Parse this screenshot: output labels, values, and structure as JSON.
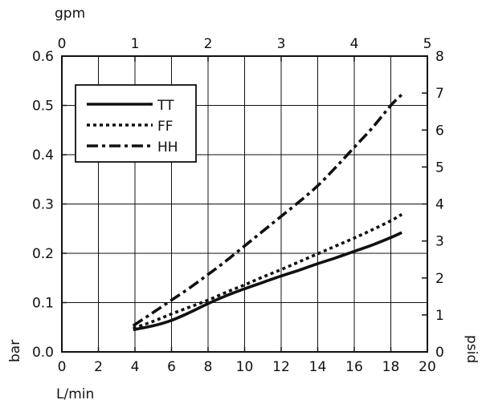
{
  "chart_data": {
    "type": "line",
    "title": "",
    "xlabel": "L/min",
    "ylabel": "bar",
    "x2label": "gpm",
    "y2label": "psid",
    "xlim": [
      0,
      20
    ],
    "ylim": [
      0,
      0.6
    ],
    "x2lim": [
      0,
      5
    ],
    "y2lim": [
      0,
      8
    ],
    "x_ticks": [
      "0",
      "2",
      "4",
      "6",
      "8",
      "10",
      "12",
      "14",
      "16",
      "18",
      "20"
    ],
    "y_ticks": [
      "0.0",
      "0.1",
      "0.2",
      "0.3",
      "0.4",
      "0.5",
      "0.6"
    ],
    "x2_ticks": [
      "0",
      "1",
      "2",
      "3",
      "4",
      "5"
    ],
    "y2_ticks": [
      "0",
      "1",
      "2",
      "3",
      "4",
      "5",
      "6",
      "7",
      "8"
    ],
    "grid": true,
    "legend_position": "top-left",
    "series": [
      {
        "name": "TT",
        "style": "solid",
        "color": "#111111",
        "x": [
          3.9,
          5,
          6,
          7,
          8,
          9,
          10,
          11,
          12,
          13,
          14,
          15,
          16,
          17,
          18,
          18.6
        ],
        "y": [
          0.045,
          0.053,
          0.064,
          0.08,
          0.098,
          0.114,
          0.128,
          0.141,
          0.154,
          0.166,
          0.179,
          0.191,
          0.204,
          0.217,
          0.232,
          0.242
        ]
      },
      {
        "name": "FF",
        "style": "dotted",
        "color": "#111111",
        "x": [
          3.9,
          5,
          6,
          7,
          8,
          9,
          10,
          11,
          12,
          13,
          14,
          15,
          16,
          17,
          18,
          18.6
        ],
        "y": [
          0.048,
          0.062,
          0.077,
          0.091,
          0.105,
          0.121,
          0.136,
          0.152,
          0.167,
          0.183,
          0.199,
          0.215,
          0.231,
          0.248,
          0.266,
          0.279
        ]
      },
      {
        "name": "HH",
        "style": "dash-dot",
        "color": "#111111",
        "x": [
          3.9,
          5,
          6,
          7,
          8,
          9,
          10,
          11,
          12,
          13,
          14,
          15,
          16,
          17,
          18,
          18.6
        ],
        "y": [
          0.053,
          0.08,
          0.105,
          0.13,
          0.157,
          0.185,
          0.215,
          0.245,
          0.275,
          0.305,
          0.337,
          0.375,
          0.415,
          0.455,
          0.5,
          0.522
        ]
      }
    ]
  }
}
